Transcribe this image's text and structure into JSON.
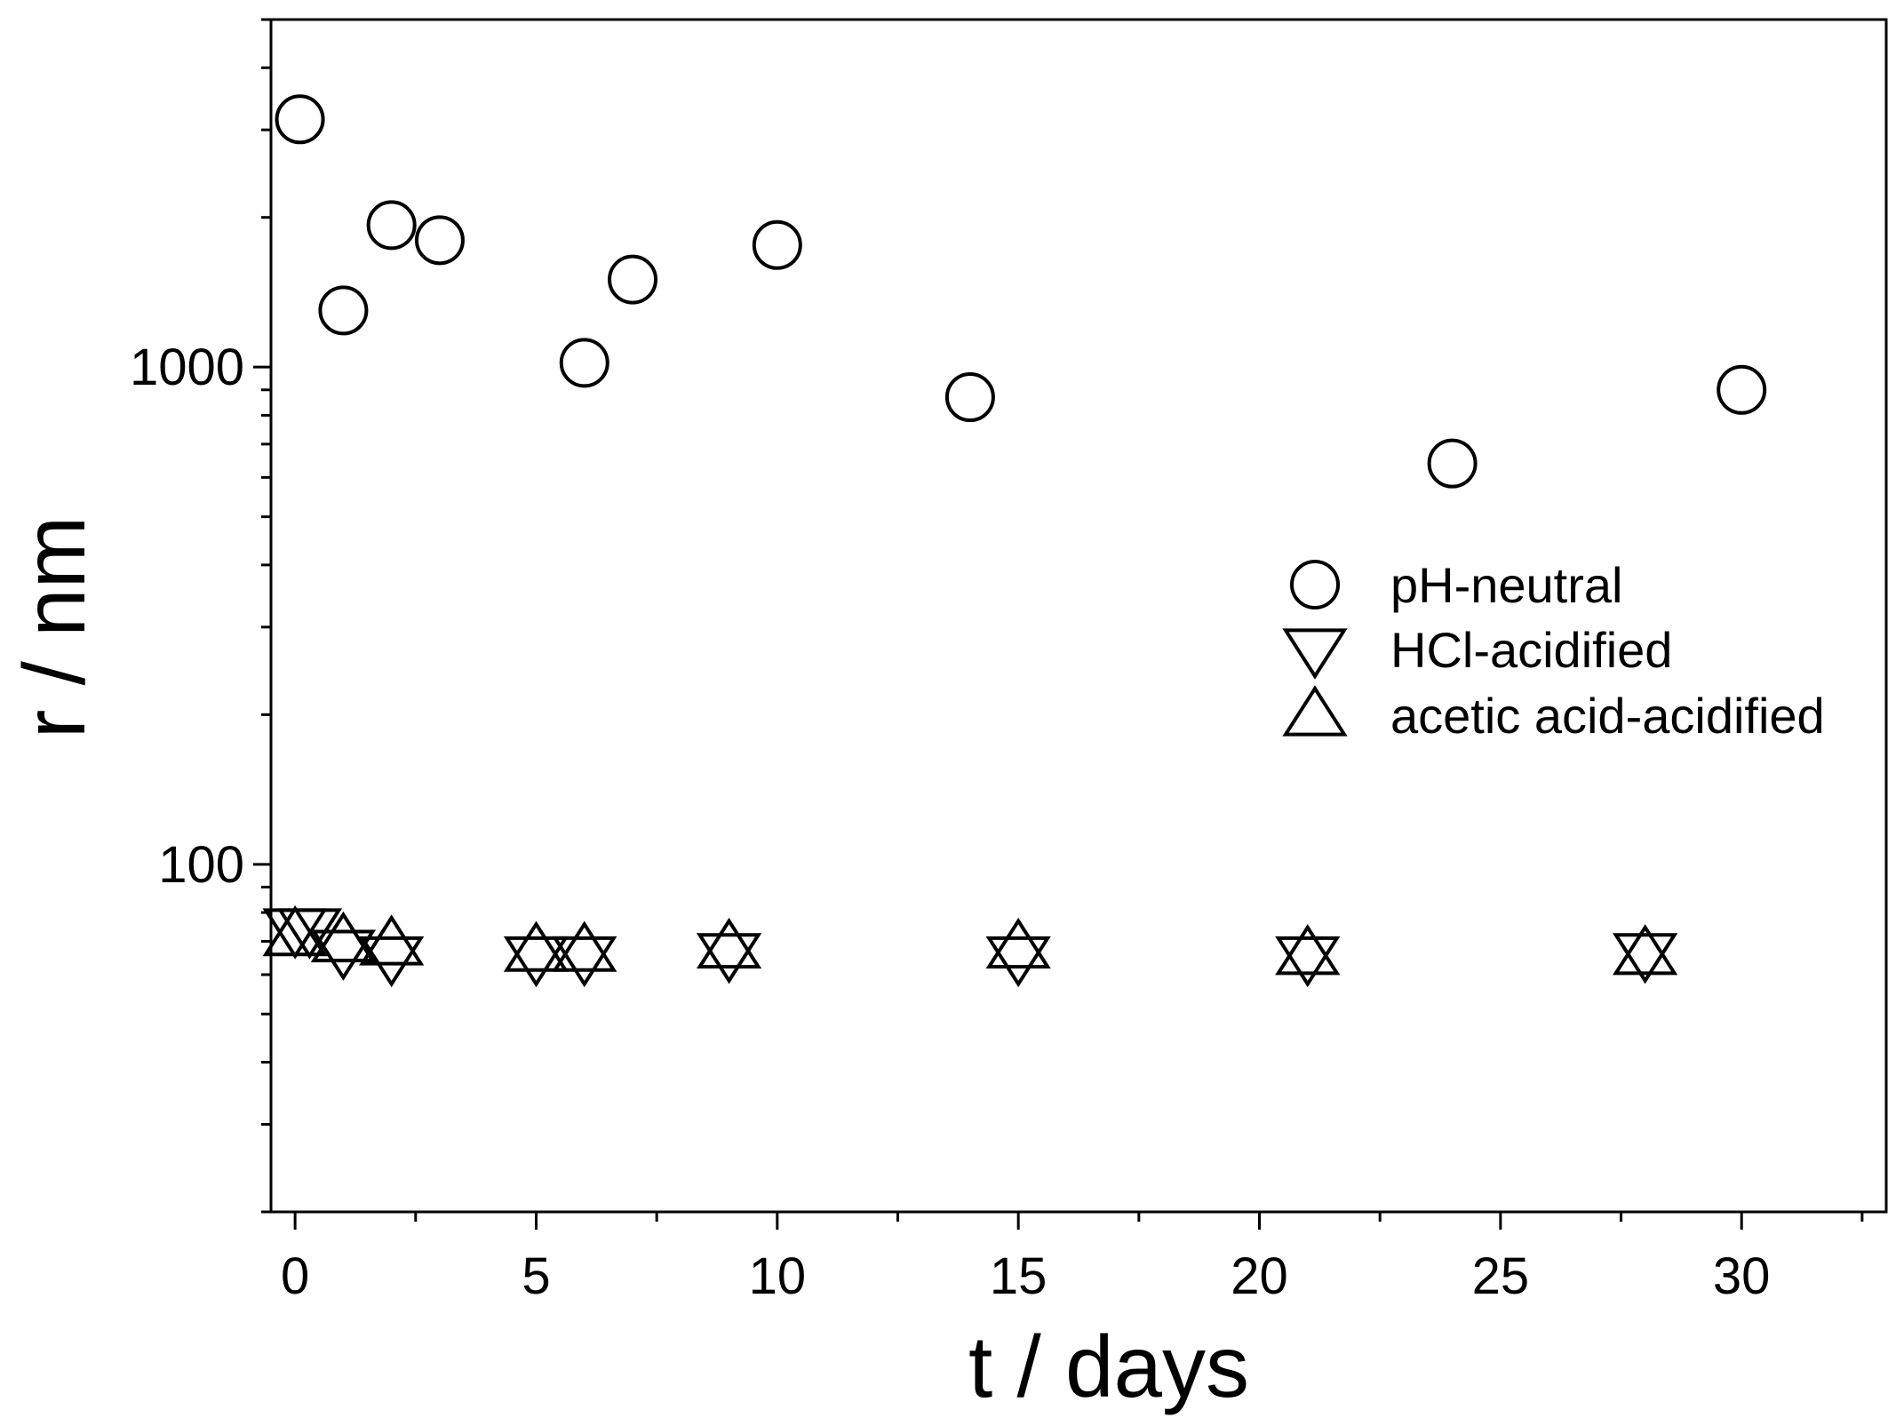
{
  "chart_data": {
    "type": "scatter",
    "title": "",
    "xlabel": "t / days",
    "ylabel": "r / nm",
    "xlim": [
      -0.5,
      33
    ],
    "ylim": [
      20,
      5000
    ],
    "yscale": "log",
    "x_ticks": [
      0,
      5,
      10,
      15,
      20,
      25,
      30
    ],
    "x_tick_labels": [
      "0",
      "5",
      "10",
      "15",
      "20",
      "25",
      "30"
    ],
    "y_ticks": [
      100,
      1000
    ],
    "y_tick_labels": [
      "100",
      "1000"
    ],
    "grid": false,
    "legend_position": "right",
    "series": [
      {
        "name": "pH-neutral",
        "marker": "circle",
        "x": [
          0.1,
          1,
          2,
          3,
          6,
          7,
          10,
          14,
          24,
          30
        ],
        "y": [
          3150,
          1300,
          1930,
          1800,
          1020,
          1500,
          1760,
          870,
          640,
          900
        ]
      },
      {
        "name": "HCl-acidified",
        "marker": "triangle-down",
        "x": [
          0,
          0.3,
          1,
          2,
          5,
          6,
          9,
          15,
          21,
          28
        ],
        "y": [
          74,
          74,
          67,
          65,
          65,
          65,
          66,
          65,
          65,
          66
        ]
      },
      {
        "name": "acetic acid-acidified",
        "marker": "triangle-up",
        "x": [
          0,
          1,
          2,
          5,
          6,
          9,
          15,
          21,
          28
        ],
        "y": [
          72,
          70,
          69,
          67,
          67,
          68,
          68,
          66,
          66
        ]
      }
    ]
  }
}
